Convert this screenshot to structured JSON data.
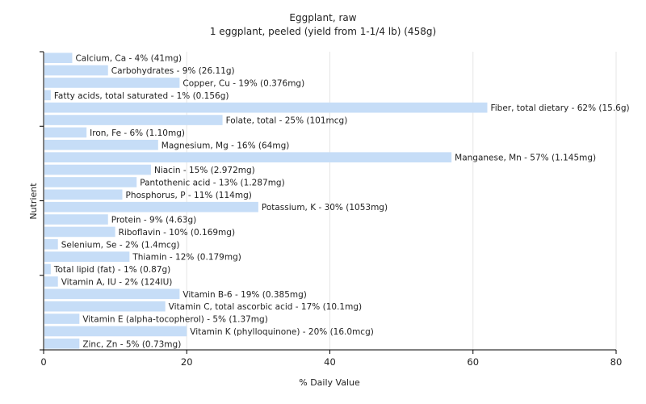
{
  "chart_data": {
    "type": "bar",
    "orientation": "horizontal",
    "title": "Eggplant, raw",
    "subtitle": "1 eggplant, peeled (yield from 1-1/4 lb) (458g)",
    "xlabel": "% Daily Value",
    "ylabel": "Nutrient",
    "xlim": [
      0,
      80
    ],
    "xticks": [
      0,
      20,
      40,
      60,
      80
    ],
    "grid": true,
    "bar_color": "#c6ddf7",
    "categories": [
      "Calcium, Ca",
      "Carbohydrates",
      "Copper, Cu",
      "Fatty acids, total saturated",
      "Fiber, total dietary",
      "Folate, total",
      "Iron, Fe",
      "Magnesium, Mg",
      "Manganese, Mn",
      "Niacin",
      "Pantothenic acid",
      "Phosphorus, P",
      "Potassium, K",
      "Protein",
      "Riboflavin",
      "Selenium, Se",
      "Thiamin",
      "Total lipid (fat)",
      "Vitamin A, IU",
      "Vitamin B-6",
      "Vitamin C, total ascorbic acid",
      "Vitamin E (alpha-tocopherol)",
      "Vitamin K (phylloquinone)",
      "Zinc, Zn"
    ],
    "values": [
      4,
      9,
      19,
      1,
      62,
      25,
      6,
      16,
      57,
      15,
      13,
      11,
      30,
      9,
      10,
      2,
      12,
      1,
      2,
      19,
      17,
      5,
      20,
      5
    ],
    "labels": [
      "Calcium, Ca - 4% (41mg)",
      "Carbohydrates - 9% (26.11g)",
      "Copper, Cu - 19% (0.376mg)",
      "Fatty acids, total saturated - 1% (0.156g)",
      "Fiber, total dietary - 62% (15.6g)",
      "Folate, total - 25% (101mcg)",
      "Iron, Fe - 6% (1.10mg)",
      "Magnesium, Mg - 16% (64mg)",
      "Manganese, Mn - 57% (1.145mg)",
      "Niacin - 15% (2.972mg)",
      "Pantothenic acid - 13% (1.287mg)",
      "Phosphorus, P - 11% (114mg)",
      "Potassium, K - 30% (1053mg)",
      "Protein - 9% (4.63g)",
      "Riboflavin - 10% (0.169mg)",
      "Selenium, Se - 2% (1.4mcg)",
      "Thiamin - 12% (0.179mg)",
      "Total lipid (fat) - 1% (0.87g)",
      "Vitamin A, IU - 2% (124IU)",
      "Vitamin B-6 - 19% (0.385mg)",
      "Vitamin C, total ascorbic acid - 17% (10.1mg)",
      "Vitamin E (alpha-tocopherol) - 5% (1.37mg)",
      "Vitamin K (phylloquinone) - 20% (16.0mcg)",
      "Zinc, Zn - 5% (0.73mg)"
    ]
  }
}
